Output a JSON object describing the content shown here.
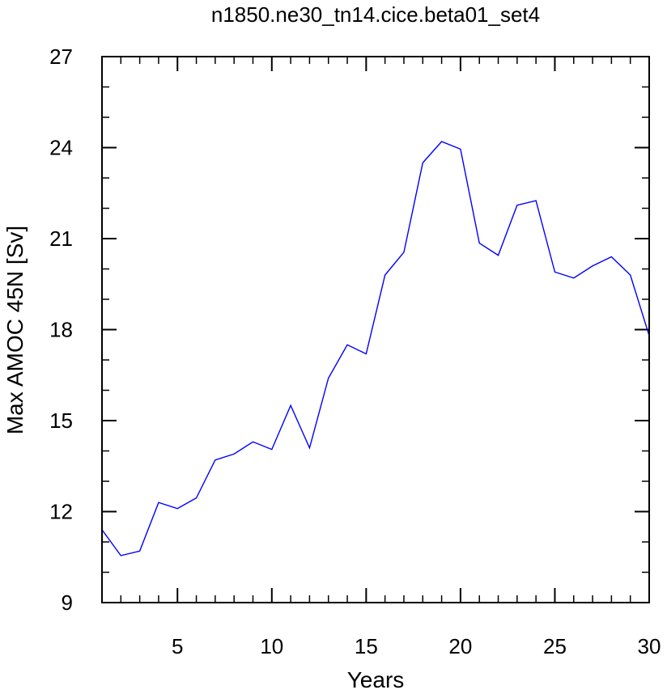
{
  "chart_data": {
    "type": "line",
    "title": "n1850.ne30_tn14.cice.beta01_set4",
    "xlabel": "Years",
    "ylabel": "Max AMOC 45N [Sv]",
    "xlim": [
      1,
      30
    ],
    "ylim": [
      9,
      27
    ],
    "x_major_ticks": [
      5,
      10,
      15,
      20,
      25,
      30
    ],
    "y_major_ticks": [
      9,
      12,
      15,
      18,
      21,
      24,
      27
    ],
    "x_minor_step": 1,
    "y_minor_step": 1,
    "grid": false,
    "line_color": "#0000ff",
    "series": [
      {
        "x": [
          1,
          2,
          3,
          4,
          5,
          6,
          7,
          8,
          9,
          10,
          11,
          12,
          13,
          14,
          15,
          16,
          17,
          18,
          19,
          20,
          21,
          22,
          23,
          24,
          25,
          26,
          27,
          28,
          29,
          30
        ],
        "values": [
          11.4,
          10.55,
          10.7,
          12.3,
          12.1,
          12.45,
          13.7,
          13.9,
          14.3,
          14.05,
          15.5,
          14.1,
          16.4,
          17.5,
          17.2,
          19.8,
          20.55,
          23.5,
          24.2,
          23.95,
          20.85,
          20.45,
          22.1,
          22.25,
          19.9,
          19.7,
          20.1,
          20.4,
          19.8,
          17.8
        ]
      }
    ]
  }
}
